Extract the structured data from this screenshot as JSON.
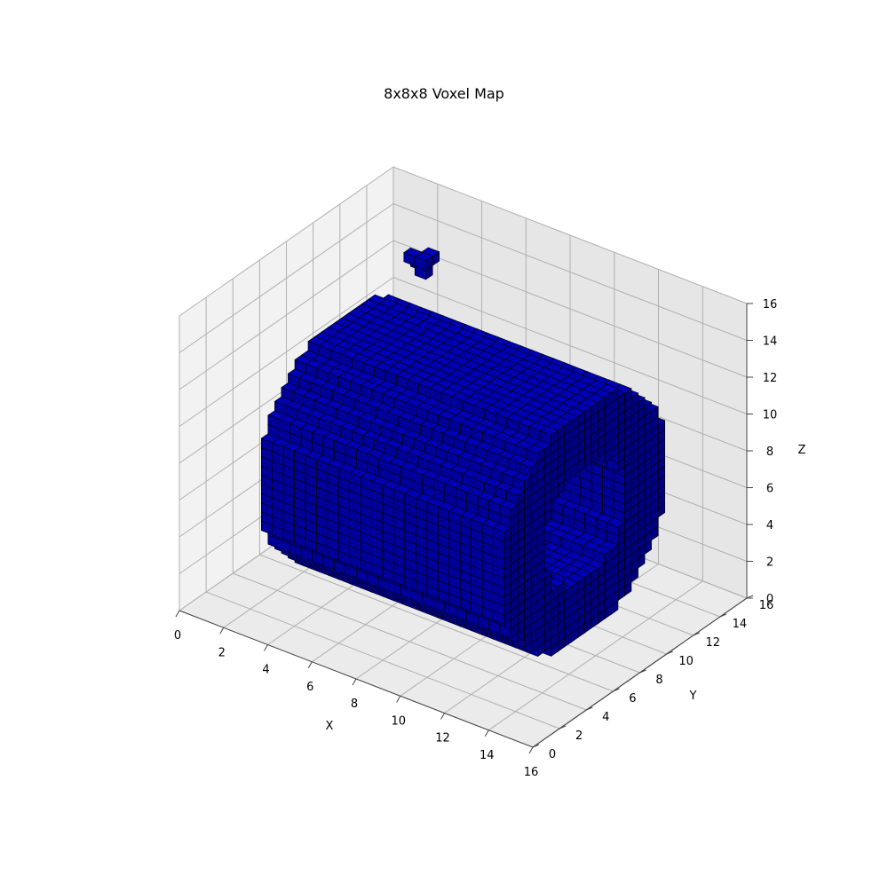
{
  "chart_data": {
    "type": "voxel-3d",
    "title": "8x8x8 Voxel Map",
    "xlabel": "X",
    "ylabel": "Y",
    "zlabel": "Z",
    "xlim": [
      0,
      16
    ],
    "ylim": [
      0,
      16
    ],
    "zlim": [
      0,
      16
    ],
    "x_ticks": [
      "0",
      "2",
      "4",
      "6",
      "8",
      "10",
      "12",
      "14",
      "16"
    ],
    "y_ticks": [
      "0",
      "2",
      "4",
      "6",
      "8",
      "10",
      "12",
      "14",
      "16"
    ],
    "z_ticks": [
      "0",
      "2",
      "4",
      "6",
      "8",
      "10",
      "12",
      "14",
      "16"
    ],
    "voxel_color": "#0000b4",
    "edge_color": "#000000",
    "pane_colors": [
      "#f2f2f2",
      "#ebebeb",
      "#e6e6e6"
    ],
    "grid": true
  }
}
